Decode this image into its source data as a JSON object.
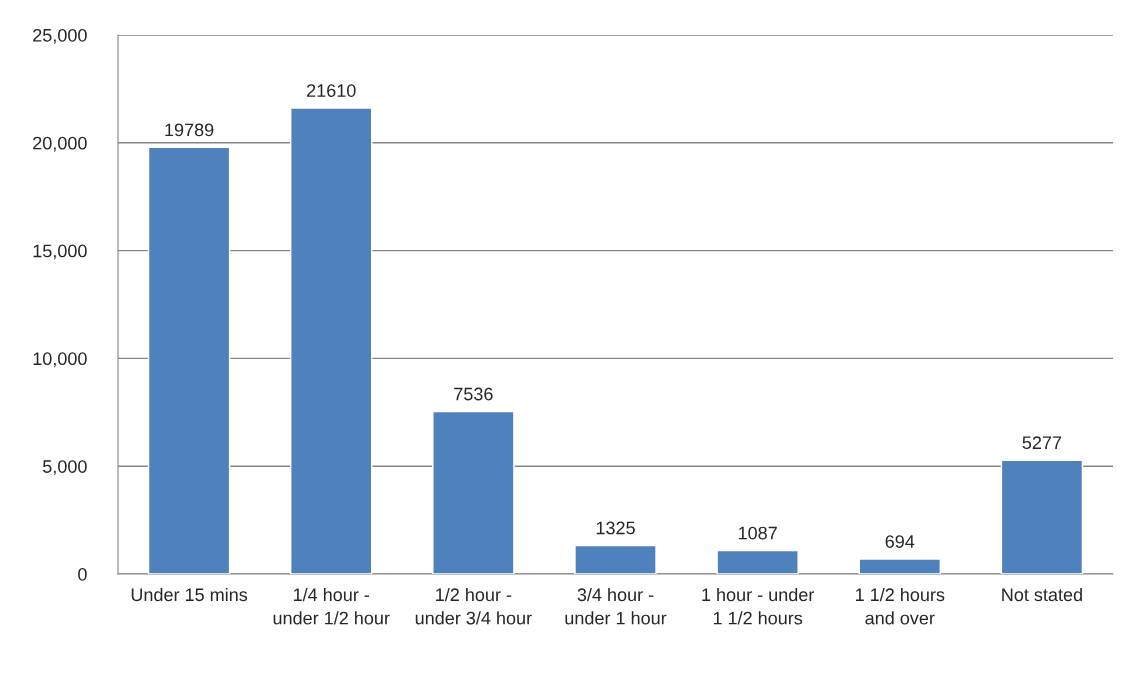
{
  "chart_data": {
    "type": "bar",
    "categories": [
      "Under 15 mins",
      "1/4 hour - under 1/2 hour",
      "1/2 hour - under 3/4 hour",
      "3/4 hour - under 1 hour",
      "1 hour - under 1 1/2 hours",
      "1 1/2 hours and over",
      "Not stated"
    ],
    "values": [
      19789,
      21610,
      7536,
      1325,
      1087,
      694,
      5277
    ],
    "color": "#4f81bd",
    "ylim": [
      0,
      25000
    ],
    "yticks": [
      0,
      {
        "value": 5000,
        "label": "5,000"
      },
      {
        "value": 10000,
        "label": "10,000"
      },
      {
        "value": 15000,
        "label": "15,000"
      },
      {
        "value": 20000,
        "label": "20,000"
      },
      {
        "value": 25000,
        "label": "25,000"
      }
    ],
    "grid": "y",
    "data_labels": true
  }
}
